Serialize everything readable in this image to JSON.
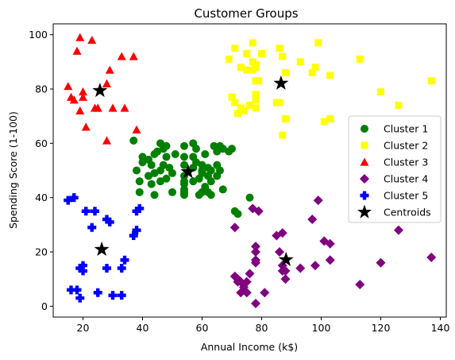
{
  "chart_data": {
    "type": "scatter",
    "title": "Customer Groups",
    "xlabel": "Annual Income (k$)",
    "ylabel": "Spending Score (1-100)",
    "xlim": [
      10,
      142
    ],
    "ylim": [
      -4,
      104
    ],
    "xticks": [
      20,
      40,
      60,
      80,
      100,
      120,
      140
    ],
    "yticks": [
      0,
      20,
      40,
      60,
      80,
      100
    ],
    "grid": false,
    "legend_position": "center-right",
    "series": [
      {
        "name": "Cluster 1",
        "color": "#008000",
        "marker": "circle",
        "points": [
          [
            37,
            61
          ],
          [
            38,
            50
          ],
          [
            39,
            46
          ],
          [
            40,
            55
          ],
          [
            39,
            42
          ],
          [
            40,
            53
          ],
          [
            42,
            48
          ],
          [
            42,
            54
          ],
          [
            43,
            52
          ],
          [
            43,
            45
          ],
          [
            44,
            49
          ],
          [
            44,
            56
          ],
          [
            44,
            41
          ],
          [
            45,
            57
          ],
          [
            46,
            60
          ],
          [
            46,
            50
          ],
          [
            46,
            46
          ],
          [
            47,
            58
          ],
          [
            47,
            52
          ],
          [
            48,
            47
          ],
          [
            48,
            59
          ],
          [
            48,
            55
          ],
          [
            49,
            51
          ],
          [
            50,
            49
          ],
          [
            50,
            42
          ],
          [
            51,
            56
          ],
          [
            54,
            59
          ],
          [
            54,
            55
          ],
          [
            54,
            52
          ],
          [
            54,
            48
          ],
          [
            54,
            46
          ],
          [
            54,
            45
          ],
          [
            54,
            43
          ],
          [
            54,
            42
          ],
          [
            54,
            41
          ],
          [
            57,
            60
          ],
          [
            57,
            55
          ],
          [
            57,
            51
          ],
          [
            57,
            46
          ],
          [
            58,
            58
          ],
          [
            58,
            53
          ],
          [
            59,
            47
          ],
          [
            59,
            41
          ],
          [
            60,
            52
          ],
          [
            60,
            50
          ],
          [
            60,
            49
          ],
          [
            60,
            42
          ],
          [
            61,
            56
          ],
          [
            61,
            44
          ],
          [
            62,
            51
          ],
          [
            62,
            48
          ],
          [
            62,
            42
          ],
          [
            63,
            46
          ],
          [
            63,
            41
          ],
          [
            63,
            50
          ],
          [
            64,
            59
          ],
          [
            65,
            52
          ],
          [
            65,
            48
          ],
          [
            65,
            57
          ],
          [
            66,
            59
          ],
          [
            66,
            50
          ],
          [
            67,
            58
          ],
          [
            67,
            43
          ],
          [
            69,
            57
          ],
          [
            70,
            58
          ],
          [
            71,
            35
          ],
          [
            72,
            34
          ],
          [
            76,
            40
          ]
        ]
      },
      {
        "name": "Cluster 2",
        "color": "#ffff00",
        "marker": "square",
        "points": [
          [
            69,
            91
          ],
          [
            70,
            77
          ],
          [
            71,
            95
          ],
          [
            71,
            75
          ],
          [
            72,
            71
          ],
          [
            73,
            88
          ],
          [
            73,
            73
          ],
          [
            74,
            72
          ],
          [
            75,
            93
          ],
          [
            75,
            87
          ],
          [
            76,
            74
          ],
          [
            77,
            87
          ],
          [
            77,
            97
          ],
          [
            77,
            90
          ],
          [
            78,
            88
          ],
          [
            78,
            76
          ],
          [
            78,
            78
          ],
          [
            78,
            73
          ],
          [
            78,
            89
          ],
          [
            78,
            83
          ],
          [
            79,
            83
          ],
          [
            80,
            93
          ],
          [
            85,
            75
          ],
          [
            86,
            95
          ],
          [
            86,
            75
          ],
          [
            87,
            63
          ],
          [
            87,
            92
          ],
          [
            88,
            86
          ],
          [
            88,
            69
          ],
          [
            93,
            90
          ],
          [
            97,
            86
          ],
          [
            98,
            88
          ],
          [
            99,
            97
          ],
          [
            101,
            68
          ],
          [
            103,
            85
          ],
          [
            103,
            69
          ],
          [
            113,
            91
          ],
          [
            120,
            79
          ],
          [
            126,
            74
          ],
          [
            137,
            83
          ]
        ]
      },
      {
        "name": "Cluster 3",
        "color": "#ff0000",
        "marker": "triangle",
        "points": [
          [
            15,
            81
          ],
          [
            16,
            77
          ],
          [
            17,
            76
          ],
          [
            18,
            94
          ],
          [
            19,
            99
          ],
          [
            19,
            72
          ],
          [
            20,
            77
          ],
          [
            20,
            79
          ],
          [
            21,
            66
          ],
          [
            23,
            98
          ],
          [
            24,
            73
          ],
          [
            25,
            73
          ],
          [
            28,
            82
          ],
          [
            28,
            61
          ],
          [
            29,
            87
          ],
          [
            30,
            73
          ],
          [
            33,
            92
          ],
          [
            34,
            73
          ],
          [
            37,
            92
          ],
          [
            38,
            65
          ]
        ]
      },
      {
        "name": "Cluster 4",
        "color": "#800080",
        "marker": "diamond",
        "points": [
          [
            71,
            29
          ],
          [
            71,
            11
          ],
          [
            72,
            9
          ],
          [
            72,
            10
          ],
          [
            73,
            5
          ],
          [
            73,
            9
          ],
          [
            74,
            8
          ],
          [
            74,
            7
          ],
          [
            75,
            5
          ],
          [
            75,
            9
          ],
          [
            76,
            12
          ],
          [
            77,
            36
          ],
          [
            78,
            22
          ],
          [
            78,
            20
          ],
          [
            78,
            17
          ],
          [
            78,
            16
          ],
          [
            78,
            1
          ],
          [
            79,
            35
          ],
          [
            81,
            5
          ],
          [
            85,
            26
          ],
          [
            86,
            20
          ],
          [
            87,
            27
          ],
          [
            87,
            13
          ],
          [
            87,
            15
          ],
          [
            88,
            10
          ],
          [
            88,
            13
          ],
          [
            93,
            14
          ],
          [
            97,
            32
          ],
          [
            98,
            15
          ],
          [
            99,
            39
          ],
          [
            101,
            24
          ],
          [
            103,
            23
          ],
          [
            103,
            17
          ],
          [
            113,
            8
          ],
          [
            120,
            16
          ],
          [
            126,
            28
          ],
          [
            137,
            18
          ]
        ]
      },
      {
        "name": "Cluster 5",
        "color": "#0000ff",
        "marker": "plus",
        "points": [
          [
            15,
            39
          ],
          [
            16,
            6
          ],
          [
            17,
            40
          ],
          [
            18,
            6
          ],
          [
            19,
            3
          ],
          [
            19,
            14
          ],
          [
            20,
            15
          ],
          [
            20,
            13
          ],
          [
            21,
            35
          ],
          [
            23,
            29
          ],
          [
            24,
            35
          ],
          [
            25,
            5
          ],
          [
            28,
            14
          ],
          [
            28,
            32
          ],
          [
            29,
            31
          ],
          [
            30,
            4
          ],
          [
            33,
            4
          ],
          [
            33,
            14
          ],
          [
            34,
            17
          ],
          [
            37,
            26
          ],
          [
            38,
            35
          ],
          [
            38,
            28
          ],
          [
            39,
            36
          ]
        ]
      },
      {
        "name": "Centroids",
        "color": "#000000",
        "marker": "star",
        "points": [
          [
            55.3,
            49.5
          ],
          [
            86.5,
            82.1
          ],
          [
            25.7,
            79.4
          ],
          [
            88.2,
            17.1
          ],
          [
            26.3,
            20.9
          ]
        ]
      }
    ]
  }
}
